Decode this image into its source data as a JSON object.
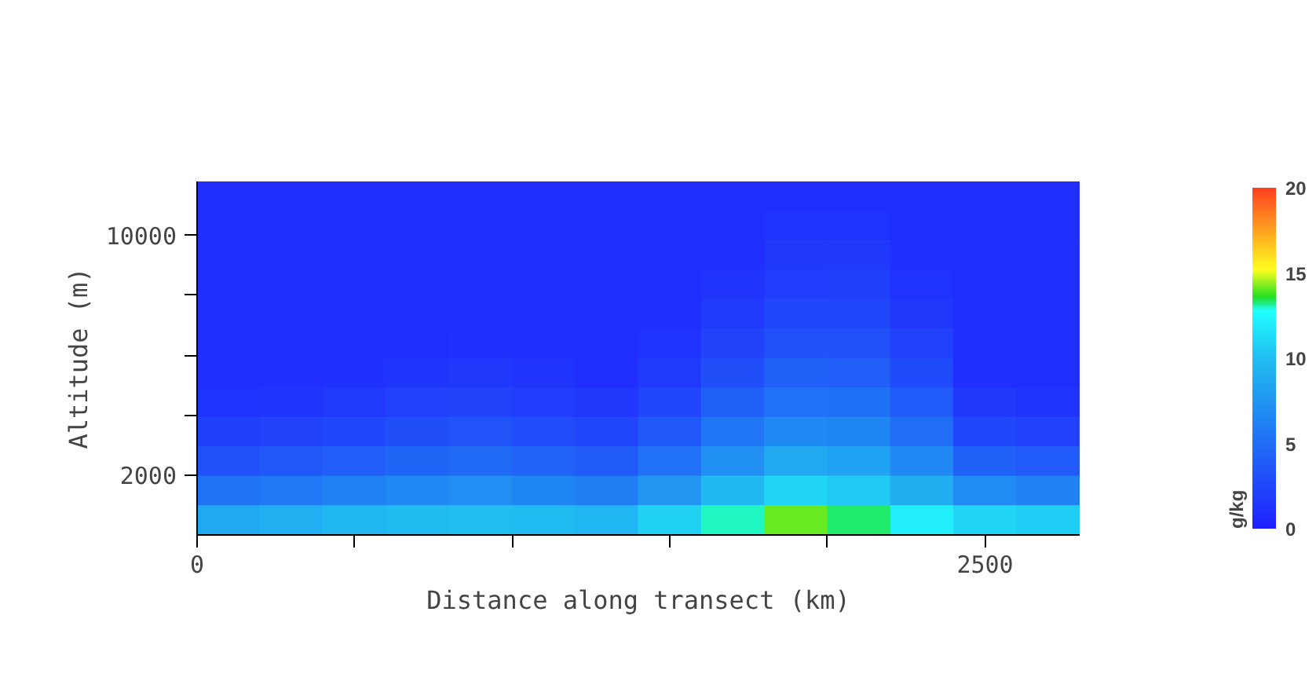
{
  "chart_data": {
    "type": "heatmap",
    "xlabel": "Distance along transect (km)",
    "ylabel": "Altitude (m)",
    "clabel": "g/kg",
    "x": [
      100,
      300,
      500,
      700,
      900,
      1100,
      1300,
      1500,
      1700,
      1900,
      2100,
      2300,
      2500,
      2700
    ],
    "y": [
      11310,
      10320,
      9340,
      8360,
      7370,
      6390,
      5410,
      4420,
      3440,
      2460,
      1470,
      490
    ],
    "xlim": [
      0,
      2800
    ],
    "ylim": [
      0,
      11800
    ],
    "xticks": [
      0,
      {
        "value": 500,
        "label": null
      },
      {
        "value": 1000,
        "label": null
      },
      {
        "value": 1500,
        "label": null
      },
      {
        "value": 2000,
        "label": null
      },
      2500
    ],
    "yticks": [
      2000,
      {
        "value": 4000,
        "label": null
      },
      {
        "value": 6000,
        "label": null
      },
      {
        "value": 8000,
        "label": null
      },
      10000
    ],
    "clim": [
      0,
      20
    ],
    "cticks": [
      0,
      5,
      10,
      15,
      20
    ],
    "cells": [
      [
        1,
        1,
        1,
        1,
        1,
        1,
        1,
        1,
        1,
        1,
        1,
        1,
        1,
        1
      ],
      [
        1,
        1,
        1,
        1,
        1,
        1,
        1,
        1,
        1,
        1.2,
        1.2,
        1,
        1,
        1
      ],
      [
        1,
        1,
        1,
        1,
        1,
        1,
        1,
        1,
        1,
        1.5,
        1.6,
        1,
        1,
        1
      ],
      [
        1,
        1,
        1,
        1,
        1,
        1,
        1,
        1,
        1.3,
        1.9,
        2.0,
        1.2,
        1,
        1
      ],
      [
        1,
        1,
        1,
        1,
        1,
        1,
        1,
        1,
        1.7,
        2.5,
        2.5,
        1.5,
        1,
        1
      ],
      [
        1,
        1,
        1,
        1,
        1.1,
        1,
        1,
        1.2,
        2.3,
        3.2,
        3.2,
        2.1,
        1,
        1
      ],
      [
        1,
        1,
        1.1,
        1.4,
        1.6,
        1.3,
        1,
        1.7,
        3.0,
        4.1,
        4.0,
        2.8,
        1,
        1
      ],
      [
        1.2,
        1.4,
        1.7,
        2.1,
        2.3,
        1.9,
        1.5,
        2.5,
        4.1,
        5.2,
        5.1,
        3.7,
        1.6,
        1.3
      ],
      [
        2.0,
        2.3,
        2.6,
        3.0,
        3.3,
        2.9,
        2.4,
        3.6,
        5.4,
        6.7,
        6.5,
        5.0,
        2.6,
        2.2
      ],
      [
        3.2,
        3.6,
        4.0,
        4.5,
        4.8,
        4.3,
        3.8,
        5.2,
        7.2,
        8.6,
        8.3,
        6.7,
        4.2,
        3.7
      ],
      [
        5.3,
        5.7,
        6.2,
        6.7,
        7.0,
        6.5,
        6.0,
        7.5,
        9.7,
        11.0,
        10.5,
        9.0,
        6.8,
        6.3
      ],
      [
        8.6,
        9.1,
        9.6,
        9.9,
        10.0,
        9.8,
        9.5,
        10.8,
        13.0,
        14.1,
        13.3,
        12.1,
        11.0,
        10.7
      ]
    ]
  }
}
